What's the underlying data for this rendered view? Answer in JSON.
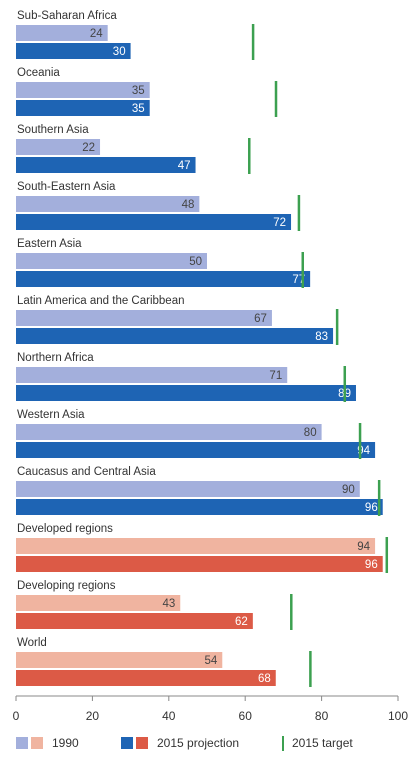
{
  "chart_data": {
    "type": "bar",
    "orientation": "horizontal",
    "categories": [
      "Sub-Saharan Africa",
      "Oceania",
      "Southern Asia",
      "South-Eastern Asia",
      "Eastern Asia",
      "Latin America and the Caribbean",
      "Northern Africa",
      "Western Asia",
      "Caucasus and Central Asia",
      "Developed regions",
      "Developing regions",
      "World"
    ],
    "series": [
      {
        "name": "1990",
        "values": [
          24,
          35,
          22,
          48,
          50,
          67,
          71,
          80,
          90,
          94,
          43,
          54
        ]
      },
      {
        "name": "2015 projection",
        "values": [
          30,
          35,
          47,
          72,
          77,
          83,
          89,
          94,
          96,
          96,
          62,
          68
        ]
      },
      {
        "name": "2015 target",
        "values": [
          62,
          68,
          61,
          74,
          75,
          84,
          86,
          90,
          95,
          97,
          72,
          77
        ]
      }
    ],
    "aggregate_categories": [
      "Developed regions",
      "Developing regions",
      "World"
    ],
    "xlim": [
      0,
      100
    ],
    "xticks": [
      "0",
      "20",
      "40",
      "60",
      "80",
      "100"
    ],
    "colors": {
      "region_1990": "#a3afdc",
      "region_2015": "#1e64b4",
      "aggregate_1990": "#f0b4a0",
      "aggregate_2015": "#dc5a46",
      "target": "#3ca050",
      "axis": "#888888",
      "text": "#333333"
    },
    "legend": {
      "position": "bottom",
      "label_1990": "1990",
      "label_2015": "2015 projection",
      "label_target": "2015 target"
    }
  }
}
